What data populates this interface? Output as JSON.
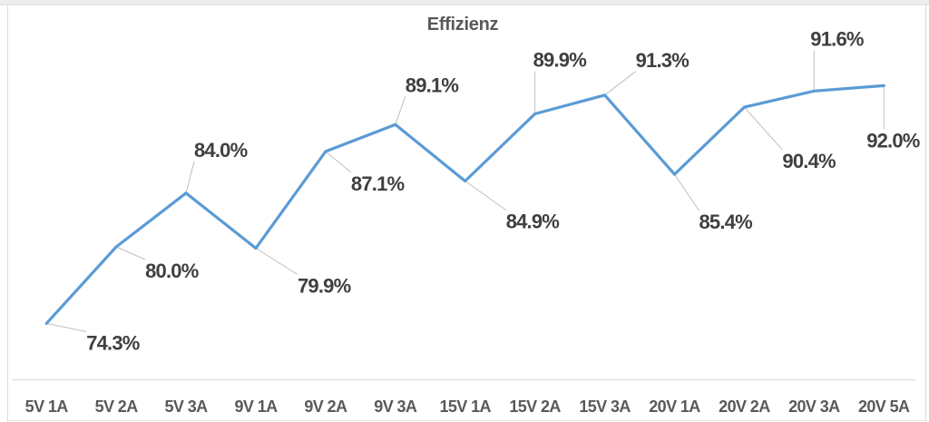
{
  "page": {
    "background": "#FFFFFF",
    "top_strip_color": "#EDEDED",
    "top_strip_border_color": "#D8D8D8",
    "frame_border_color": "#DCDCDC",
    "bottom_border_color": "#E4E4E4"
  },
  "chart_data": {
    "type": "line",
    "title": "Effizienz",
    "categories": [
      "5V 1A",
      "5V 2A",
      "5V 3A",
      "9V 1A",
      "9V 2A",
      "9V 3A",
      "15V 1A",
      "15V 2A",
      "15V 3A",
      "20V 1A",
      "20V 2A",
      "20V 3A",
      "20V 5A"
    ],
    "series": [
      {
        "name": "Effizienz",
        "values": [
          74.3,
          80.0,
          84.0,
          79.9,
          87.1,
          89.1,
          84.9,
          89.9,
          91.3,
          85.4,
          90.4,
          91.6,
          92.0
        ]
      }
    ],
    "data_labels": [
      "74.3%",
      "80.0%",
      "84.0%",
      "79.9%",
      "87.1%",
      "89.1%",
      "84.9%",
      "89.9%",
      "91.3%",
      "85.4%",
      "90.4%",
      "91.6%",
      "92.0%"
    ],
    "xlabel": "",
    "ylabel": "",
    "ylim": [
      70,
      95
    ],
    "grid": false,
    "legend": "none",
    "y_axis_visible": false,
    "x_axis_visible": true,
    "colors": {
      "series_line": "#5B9BD5",
      "data_label": "#3F3F3F",
      "category_label": "#595959",
      "title": "#595959",
      "axis_line": "#D9D9D9",
      "leader_line": "#BFBFBF"
    }
  }
}
